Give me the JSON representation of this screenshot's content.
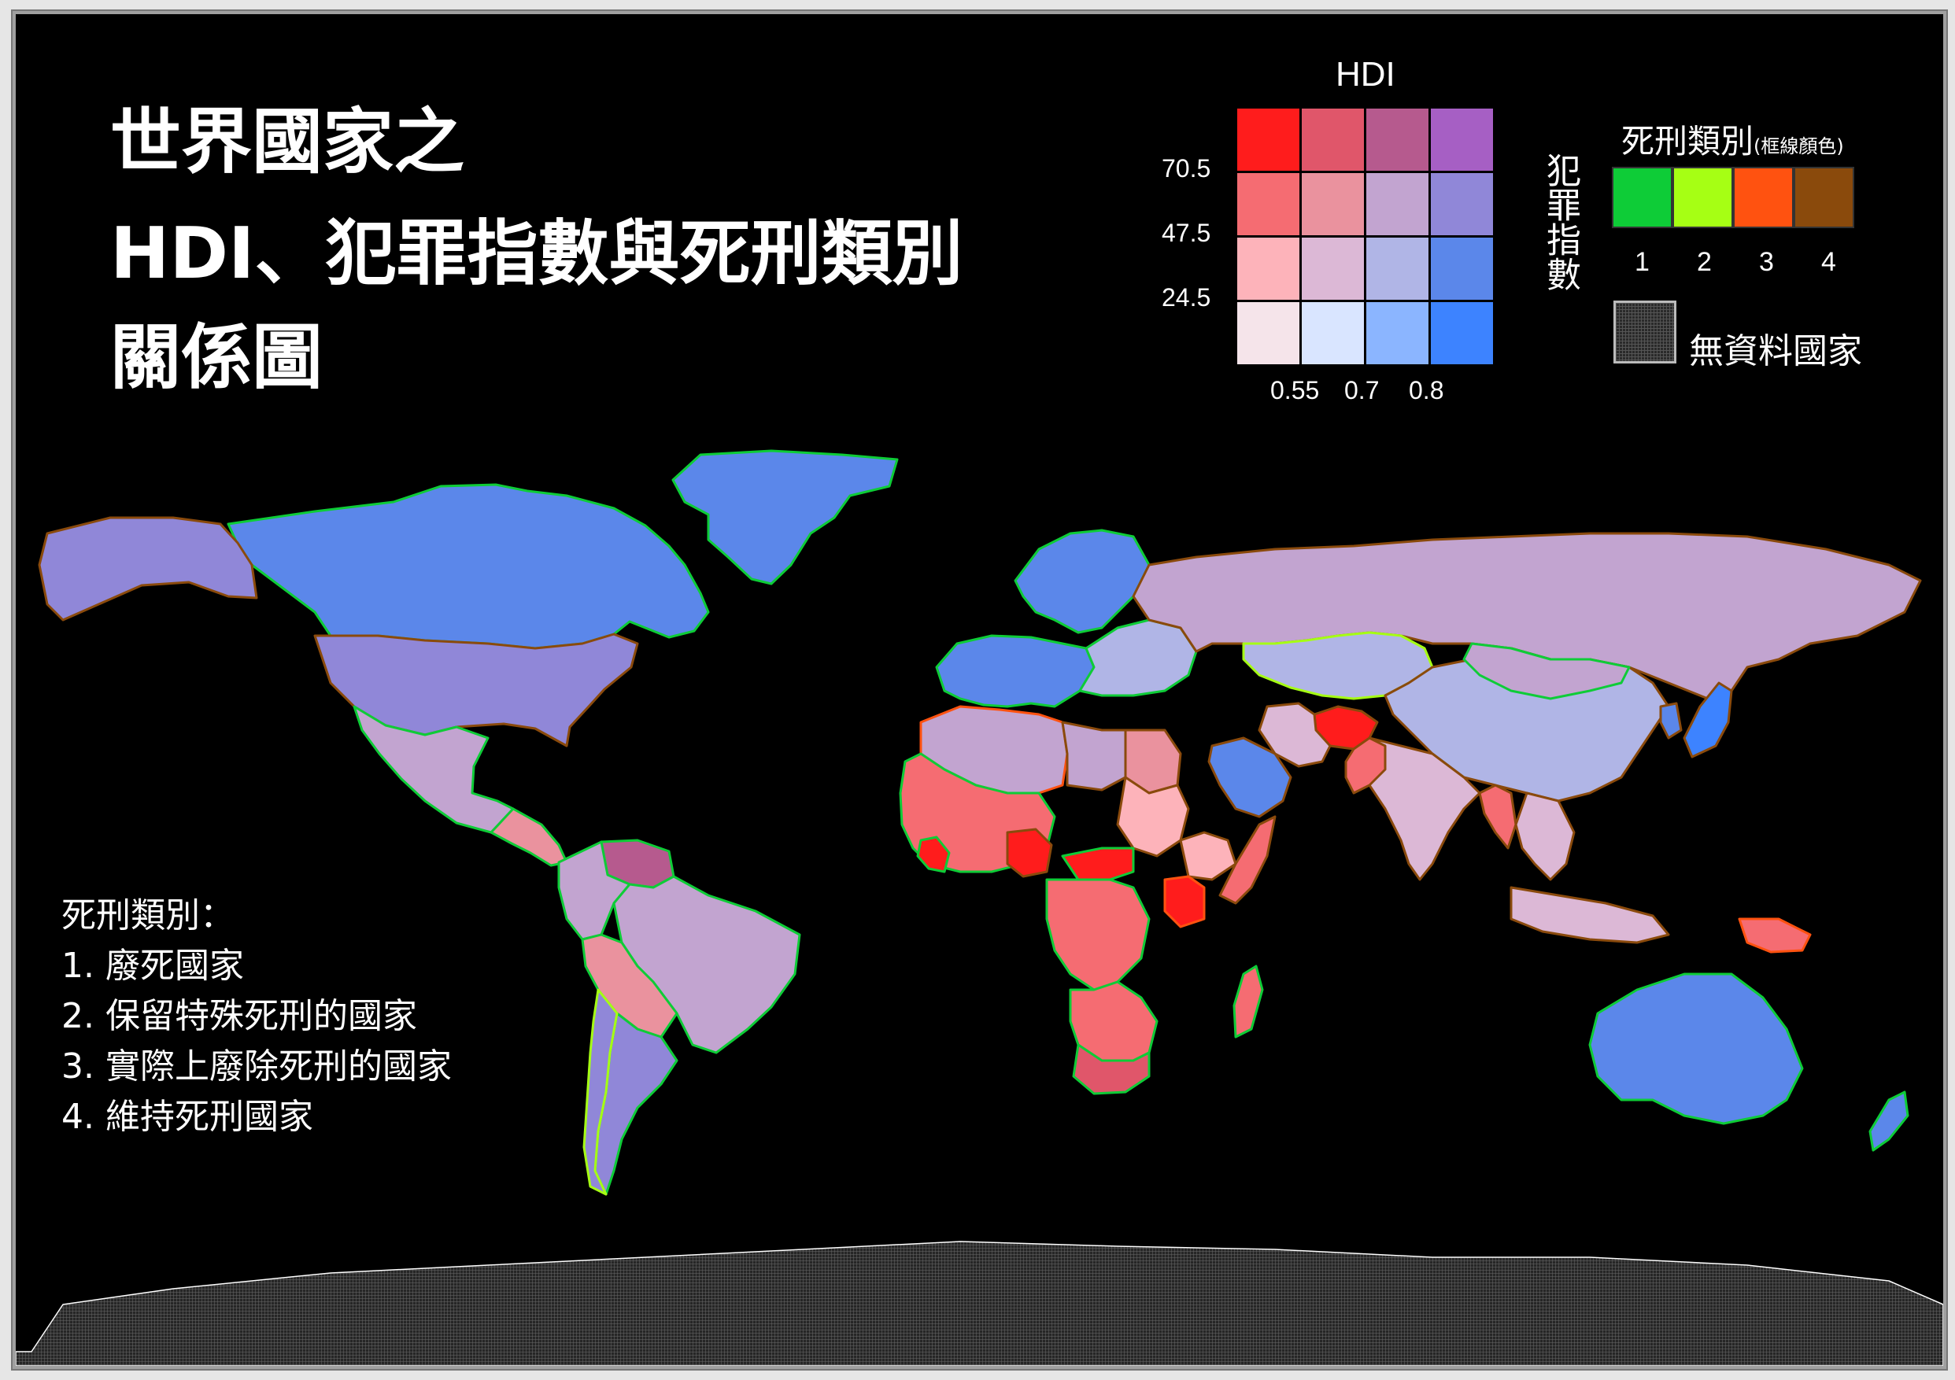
{
  "title": {
    "line1": "世界國家之",
    "line2": "HDI、犯罪指數與死刑類別",
    "line3": "關係圖"
  },
  "hdi_legend": {
    "title": "HDI",
    "side_label": "犯罪指數",
    "crime_ticks": [
      "70.5",
      "47.5",
      "24.5"
    ],
    "hdi_ticks": [
      "0.55",
      "0.7",
      "0.8"
    ],
    "grid_colors": [
      [
        "#ff1c1c",
        "#e0566a",
        "#b65a8e",
        "#a65fc4"
      ],
      [
        "#f56c72",
        "#ea929e",
        "#c2a4d0",
        "#9087d8"
      ],
      [
        "#fdb3ba",
        "#dcb8d6",
        "#b0b5e6",
        "#5b87ea"
      ],
      [
        "#f5e4ea",
        "#d9e5ff",
        "#8bb5ff",
        "#3d83ff"
      ]
    ]
  },
  "death_penalty_legend": {
    "title": "死刑類別",
    "title_note": "(框線顏色)",
    "categories": [
      {
        "label": "1",
        "color": "#0ecc37"
      },
      {
        "label": "2",
        "color": "#a6ff14"
      },
      {
        "label": "3",
        "color": "#ff5210"
      },
      {
        "label": "4",
        "color": "#8a4a0c"
      }
    ],
    "no_data_label": "無資料國家"
  },
  "death_penalty_explanation": {
    "heading": "死刑類別：",
    "items": [
      "1. 廢死國家",
      "2. 保留特殊死刑的國家",
      "3. 實際上廢除死刑的國家",
      "4. 維持死刑國家"
    ]
  },
  "map": {
    "background_color": "#000000",
    "regions": [
      {
        "name": "Greenland",
        "fill": "#5b87ea",
        "border": "#0ecc37"
      },
      {
        "name": "Canada",
        "fill": "#5b87ea",
        "border": "#0ecc37"
      },
      {
        "name": "Alaska (United States)",
        "fill": "#9087d8",
        "border": "#8a4a0c"
      },
      {
        "name": "United States",
        "fill": "#9087d8",
        "border": "#8a4a0c"
      },
      {
        "name": "Mexico",
        "fill": "#c2a4d0",
        "border": "#0ecc37"
      },
      {
        "name": "Central America",
        "fill": "#ea929e",
        "border": "#0ecc37"
      },
      {
        "name": "Venezuela",
        "fill": "#b65a8e",
        "border": "#0ecc37"
      },
      {
        "name": "Colombia / Andes",
        "fill": "#c2a4d0",
        "border": "#0ecc37"
      },
      {
        "name": "Brazil",
        "fill": "#c2a4d0",
        "border": "#0ecc37"
      },
      {
        "name": "Peru / Bolivia",
        "fill": "#ea929e",
        "border": "#0ecc37"
      },
      {
        "name": "Argentina",
        "fill": "#9087d8",
        "border": "#0ecc37"
      },
      {
        "name": "Chile",
        "fill": "#9087d8",
        "border": "#a6ff14"
      },
      {
        "name": "Western Europe",
        "fill": "#5b87ea",
        "border": "#0ecc37"
      },
      {
        "name": "Scandinavia",
        "fill": "#5b87ea",
        "border": "#0ecc37"
      },
      {
        "name": "Eastern Europe",
        "fill": "#b0b5e6",
        "border": "#0ecc37"
      },
      {
        "name": "Russia",
        "fill": "#c2a4d0",
        "border": "#8a4a0c"
      },
      {
        "name": "Kazakhstan / Central Asia",
        "fill": "#b0b5e6",
        "border": "#a6ff14"
      },
      {
        "name": "China",
        "fill": "#b0b5e6",
        "border": "#8a4a0c"
      },
      {
        "name": "Mongolia",
        "fill": "#c2a4d0",
        "border": "#0ecc37"
      },
      {
        "name": "Japan",
        "fill": "#3d83ff",
        "border": "#8a4a0c"
      },
      {
        "name": "Korea",
        "fill": "#5b87ea",
        "border": "#8a4a0c"
      },
      {
        "name": "India",
        "fill": "#dcb8d6",
        "border": "#8a4a0c"
      },
      {
        "name": "Afghanistan",
        "fill": "#ff1c1c",
        "border": "#8a4a0c"
      },
      {
        "name": "Pakistan",
        "fill": "#f56c72",
        "border": "#8a4a0c"
      },
      {
        "name": "Iran",
        "fill": "#dcb8d6",
        "border": "#8a4a0c"
      },
      {
        "name": "Saudi Arabia",
        "fill": "#5b87ea",
        "border": "#8a4a0c"
      },
      {
        "name": "Myanmar",
        "fill": "#f56c72",
        "border": "#8a4a0c"
      },
      {
        "name": "Southeast Asia",
        "fill": "#dcb8d6",
        "border": "#8a4a0c"
      },
      {
        "name": "Indonesia",
        "fill": "#dcb8d6",
        "border": "#8a4a0c"
      },
      {
        "name": "Papua New Guinea",
        "fill": "#f56c72",
        "border": "#ff5210"
      },
      {
        "name": "Australia",
        "fill": "#5b87ea",
        "border": "#0ecc37"
      },
      {
        "name": "New Zealand",
        "fill": "#5b87ea",
        "border": "#0ecc37"
      },
      {
        "name": "North Africa",
        "fill": "#c2a4d0",
        "border": "#ff5210"
      },
      {
        "name": "Egypt",
        "fill": "#ea929e",
        "border": "#8a4a0c"
      },
      {
        "name": "Libya",
        "fill": "#c2a4d0",
        "border": "#8a4a0c"
      },
      {
        "name": "West Africa",
        "fill": "#f56c72",
        "border": "#0ecc37"
      },
      {
        "name": "Sierra Leone / Liberia",
        "fill": "#ff1c1c",
        "border": "#0ecc37"
      },
      {
        "name": "Nigeria",
        "fill": "#ff1c1c",
        "border": "#8a4a0c"
      },
      {
        "name": "Sudan",
        "fill": "#fdb3ba",
        "border": "#8a4a0c"
      },
      {
        "name": "Ethiopia",
        "fill": "#fdb3ba",
        "border": "#8a4a0c"
      },
      {
        "name": "Somalia",
        "fill": "#f56c72",
        "border": "#8a4a0c"
      },
      {
        "name": "Central African Republic",
        "fill": "#ff1c1c",
        "border": "#0ecc37"
      },
      {
        "name": "Kenya",
        "fill": "#ff1c1c",
        "border": "#ff5210"
      },
      {
        "name": "Congo",
        "fill": "#f56c72",
        "border": "#0ecc37"
      },
      {
        "name": "Southern Africa",
        "fill": "#f56c72",
        "border": "#0ecc37"
      },
      {
        "name": "South Africa",
        "fill": "#e0566a",
        "border": "#0ecc37"
      },
      {
        "name": "Madagascar",
        "fill": "#f56c72",
        "border": "#0ecc37"
      },
      {
        "name": "Antarctica",
        "fill": "no-data",
        "border": "#ffffff"
      }
    ]
  }
}
